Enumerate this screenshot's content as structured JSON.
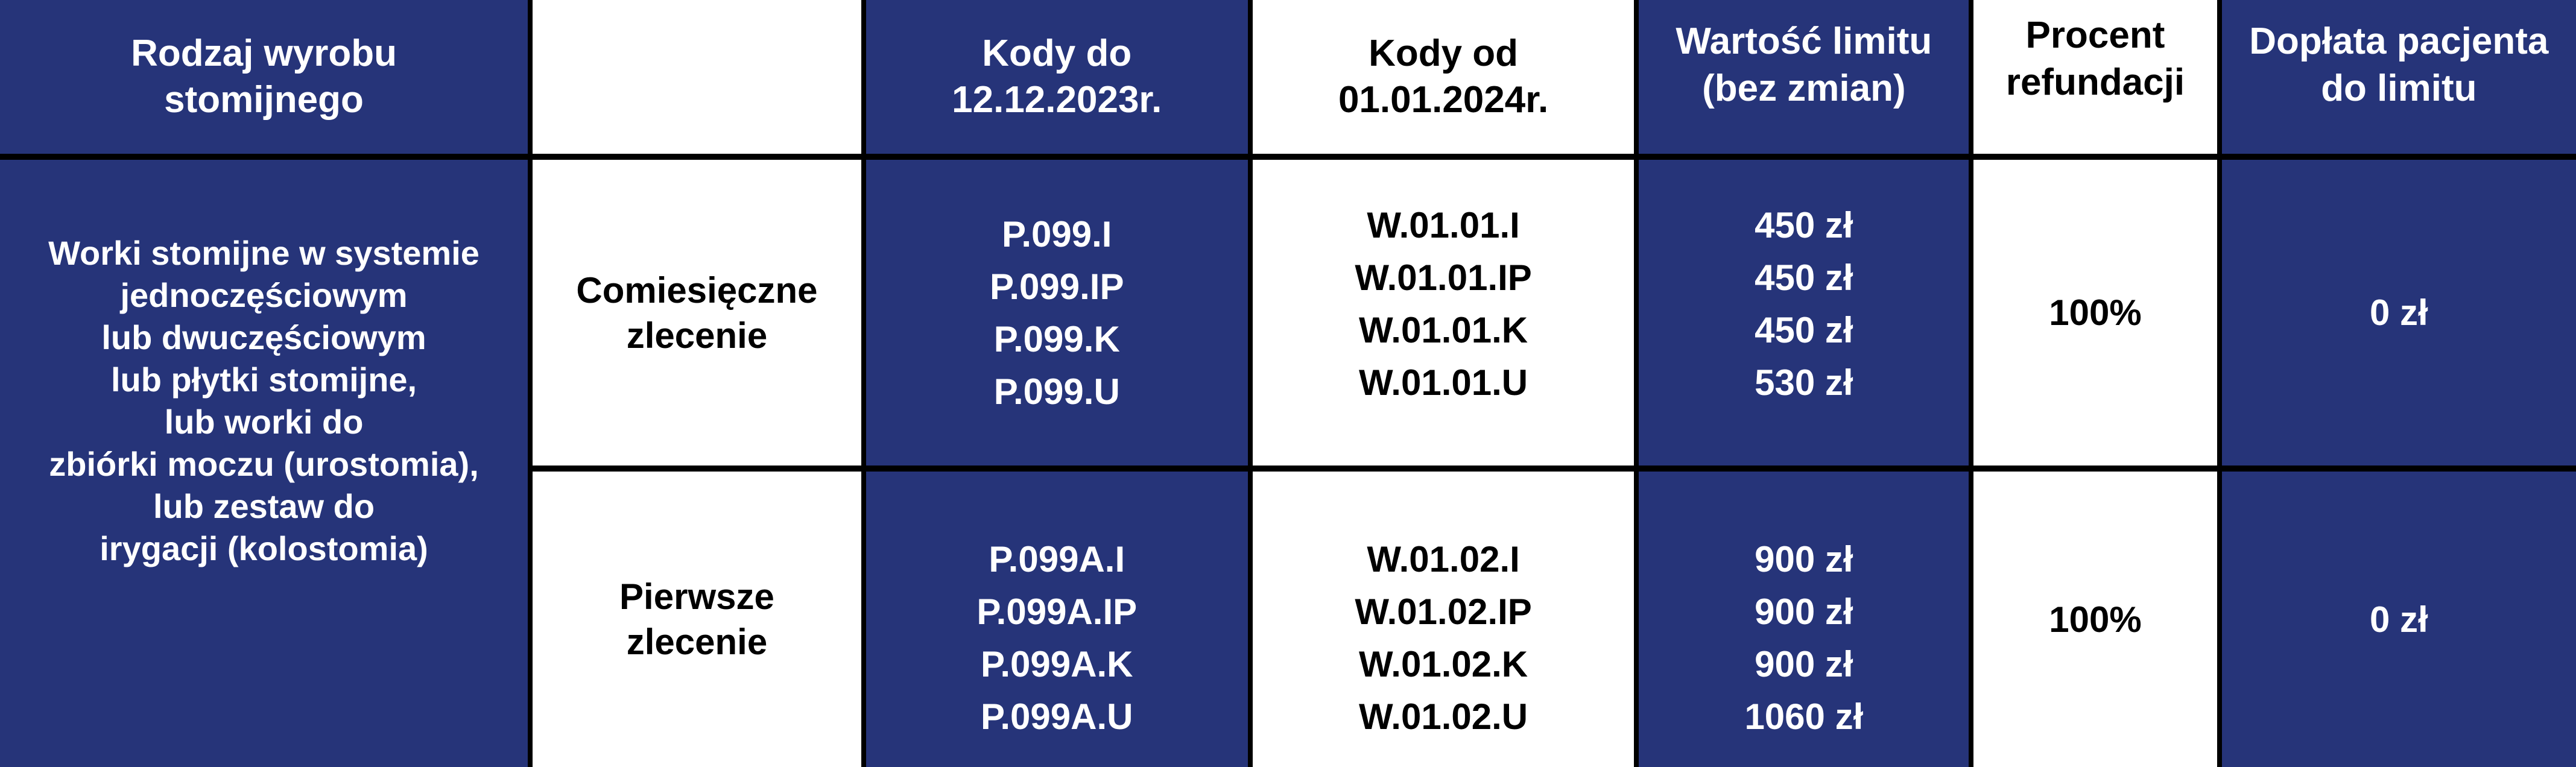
{
  "colors": {
    "navy": "#263479",
    "white": "#ffffff",
    "border": "#000000"
  },
  "header": {
    "product_type": [
      "Rodzaj wyrobu",
      "stomijnego"
    ],
    "blank": "",
    "codes_old": [
      "Kody do",
      "12.12.2023r."
    ],
    "codes_new": [
      "Kody od",
      "01.01.2024r."
    ],
    "limit": [
      "Wartość limitu",
      "(bez zmian)"
    ],
    "refund": [
      "Procent",
      "refundacji"
    ],
    "copay": [
      "Dopłata pacjenta",
      "do limitu"
    ]
  },
  "product_description": [
    "Worki stomijne w systemie",
    "jednoczęściowym",
    "lub dwuczęściowym",
    "lub płytki stomijne,",
    "lub worki do",
    "zbiórki moczu (urostomia),",
    "lub zestaw do",
    "irygacji (kolostomia)"
  ],
  "rows": [
    {
      "order_type": [
        "Comiesięczne",
        "zlecenie"
      ],
      "codes_old": [
        "P.099.I",
        "P.099.IP",
        "P.099.K",
        "P.099.U"
      ],
      "codes_new": [
        "W.01.01.I",
        "W.01.01.IP",
        "W.01.01.K",
        "W.01.01.U"
      ],
      "limits": [
        "450 zł",
        "450 zł",
        "450 zł",
        "530 zł"
      ],
      "refund": "100%",
      "copay": "0 zł"
    },
    {
      "order_type": [
        "Pierwsze",
        "zlecenie"
      ],
      "codes_old": [
        "P.099A.I",
        "P.099A.IP",
        "P.099A.K",
        "P.099A.U"
      ],
      "codes_new": [
        "W.01.02.I",
        "W.01.02.IP",
        "W.01.02.K",
        "W.01.02.U"
      ],
      "limits": [
        "900 zł",
        "900 zł",
        "900 zł",
        "1060 zł"
      ],
      "refund": "100%",
      "copay": "0 zł"
    }
  ]
}
